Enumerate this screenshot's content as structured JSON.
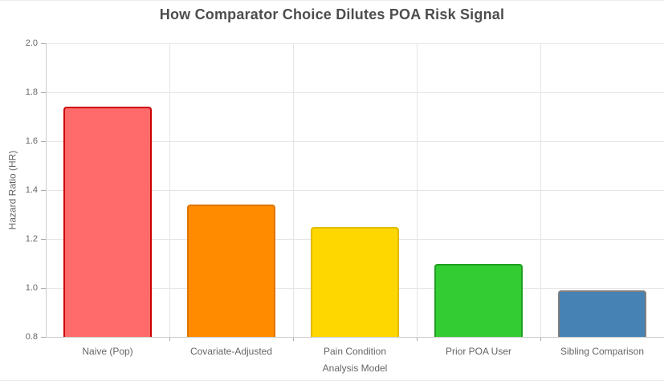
{
  "chart_data": {
    "type": "bar",
    "title": "How Comparator Choice Dilutes POA Risk Signal",
    "categories": [
      "Naive (Pop)",
      "Covariate-Adjusted",
      "Pain Condition",
      "Prior POA User",
      "Sibling Comparison"
    ],
    "values": [
      1.74,
      1.34,
      1.25,
      1.1,
      0.99
    ],
    "bar_fill_colors": [
      "#FF6B6B",
      "#FF8C00",
      "#FFD700",
      "#33CC33",
      "#4682B4"
    ],
    "bar_border_colors": [
      "#CC0000",
      "#E07400",
      "#E0BC00",
      "#1F9E1F",
      "#7F7F7F"
    ],
    "xlabel": "Analysis Model",
    "ylabel": "Hazard Ratio (HR)",
    "ylim": [
      0.8,
      2.0
    ],
    "yticks": [
      "2.0",
      "1.8",
      "1.6",
      "1.4",
      "1.2",
      "1.0",
      "0.8"
    ],
    "grid": true,
    "legend_position": "none",
    "background_color": "#ffffff",
    "gridline_color": "#e5e5e5",
    "title_color": "#4d4d4d",
    "axis_text_color": "#666666"
  }
}
